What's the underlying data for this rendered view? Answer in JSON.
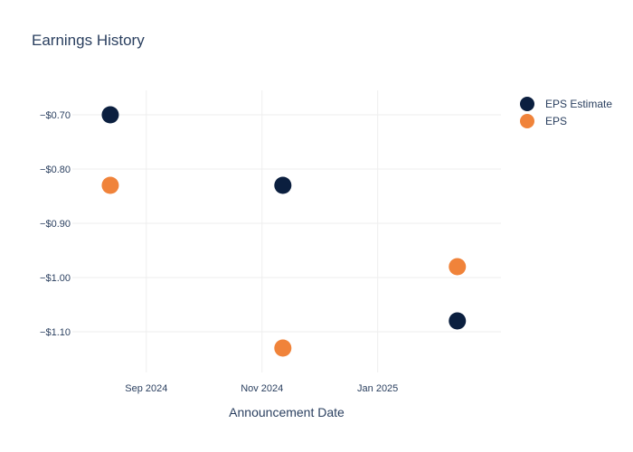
{
  "chart_data": {
    "type": "scatter",
    "title": "Earnings History",
    "xlabel": "Announcement Date",
    "ylabel": "",
    "x_ticks": [
      {
        "date": "2024-09-01",
        "label": "Sep 2024"
      },
      {
        "date": "2024-11-01",
        "label": "Nov 2024"
      },
      {
        "date": "2025-01-01",
        "label": "Jan 2025"
      }
    ],
    "y_ticks": [
      {
        "value": -0.7,
        "label": "−$0.70"
      },
      {
        "value": -0.8,
        "label": "−$0.80"
      },
      {
        "value": -0.9,
        "label": "−$0.90"
      },
      {
        "value": -1.0,
        "label": "−$1.00"
      },
      {
        "value": -1.1,
        "label": "−$1.10"
      }
    ],
    "xlim": [
      "2024-07-24",
      "2025-03-07"
    ],
    "ylim": [
      -1.175,
      -0.655
    ],
    "grid": true,
    "legend_position": "top-right",
    "series": [
      {
        "name": "EPS Estimate",
        "color": "#0b1f3f",
        "points": [
          {
            "x": "2024-08-13",
            "y": -0.7
          },
          {
            "x": "2024-11-12",
            "y": -0.83
          },
          {
            "x": "2025-02-12",
            "y": -1.08
          }
        ]
      },
      {
        "name": "EPS",
        "color": "#f0833a",
        "points": [
          {
            "x": "2024-08-13",
            "y": -0.83
          },
          {
            "x": "2024-11-12",
            "y": -1.13
          },
          {
            "x": "2025-02-12",
            "y": -0.98
          }
        ]
      }
    ]
  }
}
